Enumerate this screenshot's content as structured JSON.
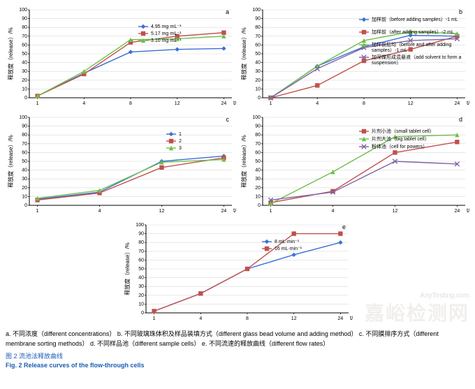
{
  "figure": {
    "caption_prefix": "a. 不同浓度（different concentrations）  b. 不同玻璃珠体积及样品装填方式（different glass bead volume and adding method）  c. 不同膜排序方式（different membrane sorting methods）  d. 不同样品池（different sample cells）  e. 不同流速的释放曲线（different flow rates）",
    "caption_cn": "图 2  流池法释放曲线",
    "caption_en": "Fig. 2  Release curves of the flow-through cells",
    "watermark": "嘉峪检测网",
    "attest": "AnyTesting.com"
  },
  "common": {
    "ylabel": "释放度（release）/%",
    "xlabel": "t/h",
    "ylim": [
      0,
      100
    ],
    "ytick_step": 10,
    "x_ticks": [
      1,
      4,
      8,
      12,
      24
    ],
    "x_positions": [
      0,
      1,
      2,
      3,
      4
    ],
    "grid_color": "#d9d9d9",
    "axis_color": "#000000",
    "bg": "#ffffff",
    "label_fontsize": 8,
    "tick_fontsize": 7,
    "legend_fontsize": 7,
    "marker_size": 3.2,
    "line_width": 1.4,
    "colors": {
      "blue": "#3b6fd6",
      "red": "#c0504d",
      "green": "#6fbf4b",
      "purple": "#8064a2"
    }
  },
  "panels": {
    "a": {
      "label": "a",
      "series": [
        {
          "name": "4.95 mg·mL⁻¹",
          "color": "blue",
          "marker": "diamond",
          "y": [
            2,
            28,
            52,
            55,
            56
          ]
        },
        {
          "name": "5.17 mg·mL⁻¹",
          "color": "red",
          "marker": "square",
          "y": [
            2,
            27,
            63,
            70,
            74
          ]
        },
        {
          "name": "3.10 mg·mL⁻¹",
          "color": "green",
          "marker": "triangle",
          "y": [
            2,
            30,
            66,
            67,
            70
          ]
        }
      ],
      "legend_pos": "right"
    },
    "b": {
      "label": "b",
      "series": [
        {
          "name": "加样前（before adding samples）-1 mL",
          "color": "blue",
          "marker": "diamond",
          "y": [
            0,
            36,
            58,
            71,
            70
          ]
        },
        {
          "name": "加样前（after adding samples）-2 mL",
          "color": "red",
          "marker": "square",
          "y": [
            0,
            14,
            42,
            55,
            70
          ]
        },
        {
          "name": "加样前后均（before and after adding samples）-1 mL",
          "color": "green",
          "marker": "triangle",
          "y": [
            0,
            36,
            65,
            75,
            73
          ]
        },
        {
          "name": "加深媒形成混悬液（add solvent to form a suspension）",
          "color": "purple",
          "marker": "x",
          "y": [
            0,
            33,
            57,
            65,
            67
          ]
        }
      ],
      "legend_pos": "right"
    },
    "c": {
      "label": "c",
      "x_ticks": [
        1,
        4,
        12,
        24
      ],
      "x_positions": [
        0,
        1,
        2,
        3
      ],
      "series": [
        {
          "name": "1",
          "color": "blue",
          "marker": "diamond",
          "y": [
            7,
            15,
            50,
            56
          ]
        },
        {
          "name": "2",
          "color": "red",
          "marker": "square",
          "y": [
            6,
            14,
            43,
            54
          ]
        },
        {
          "name": "3",
          "color": "green",
          "marker": "triangle",
          "y": [
            8,
            17,
            49,
            52
          ]
        }
      ],
      "legend_pos": "right-tight"
    },
    "d": {
      "label": "d",
      "x_ticks": [
        1,
        4,
        12,
        24
      ],
      "x_positions": [
        0,
        1,
        2,
        3
      ],
      "series": [
        {
          "name": "片剂小池（small tablet cell）",
          "color": "red",
          "marker": "square",
          "y": [
            3,
            16,
            60,
            72
          ]
        },
        {
          "name": "片剂大池（big tablet cell）",
          "color": "green",
          "marker": "triangle",
          "y": [
            2,
            38,
            78,
            80
          ]
        },
        {
          "name": "粉体池（cell for powers）",
          "color": "purple",
          "marker": "x",
          "y": [
            6,
            15,
            50,
            47
          ]
        }
      ],
      "legend_pos": "right"
    },
    "e": {
      "label": "e",
      "series": [
        {
          "name": "8 mL·min⁻¹",
          "color": "blue",
          "marker": "diamond",
          "y": [
            2,
            22,
            50,
            66,
            80
          ]
        },
        {
          "name": "16 mL·min⁻¹",
          "color": "red",
          "marker": "square",
          "y": [
            2,
            22,
            50,
            90,
            90
          ]
        }
      ],
      "legend_pos": "right"
    }
  }
}
